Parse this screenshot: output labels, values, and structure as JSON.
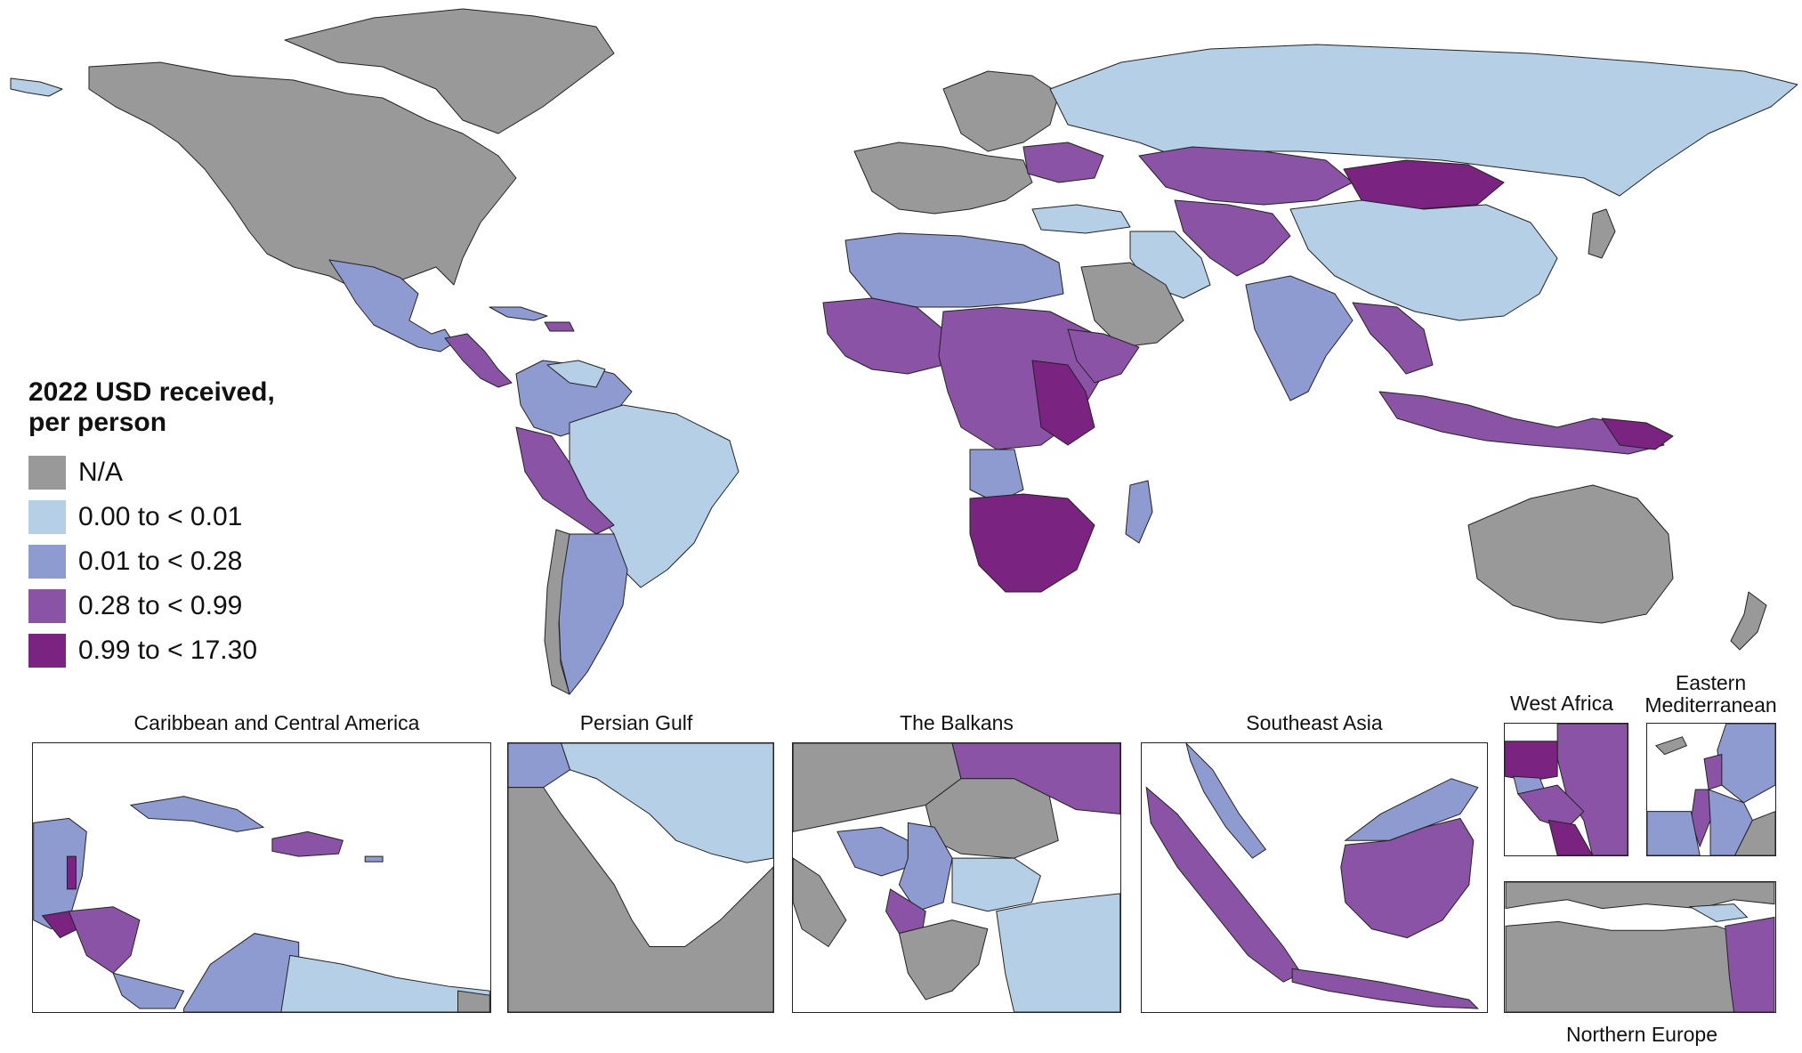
{
  "colors": {
    "na": "#999999",
    "c1": "#b4cfe6",
    "c2": "#8d9bd0",
    "c3": "#8a53a6",
    "c4": "#7a2380",
    "border": "#222222"
  },
  "legend": {
    "title": "2022 USD received,\nper person",
    "items": [
      {
        "label": "N/A",
        "color": "#999999"
      },
      {
        "label": "0.00 to < 0.01",
        "color": "#b4cfe6"
      },
      {
        "label": "0.01 to < 0.28",
        "color": "#8d9bd0"
      },
      {
        "label": "0.28 to < 0.99",
        "color": "#8a53a6"
      },
      {
        "label": "0.99 to < 17.30",
        "color": "#7a2380"
      }
    ]
  },
  "insets": {
    "caribbean": {
      "title": "Caribbean and Central America"
    },
    "persian_gulf": {
      "title": "Persian Gulf"
    },
    "balkans": {
      "title": "The Balkans"
    },
    "southeast_asia": {
      "title": "Southeast Asia"
    },
    "west_africa": {
      "title": "West Africa"
    },
    "eastern_med": {
      "title": "Eastern\nMediterranean"
    },
    "northern_europe": {
      "title": "Northern Europe"
    }
  }
}
